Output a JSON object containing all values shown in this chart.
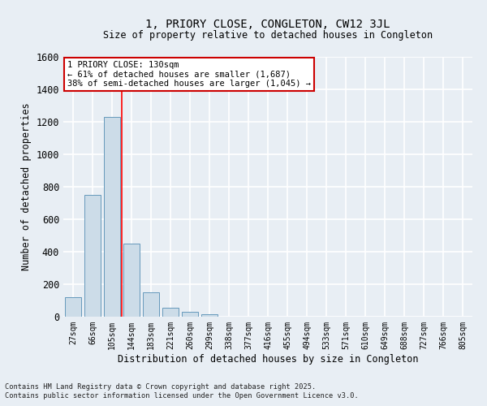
{
  "title1": "1, PRIORY CLOSE, CONGLETON, CW12 3JL",
  "title2": "Size of property relative to detached houses in Congleton",
  "xlabel": "Distribution of detached houses by size in Congleton",
  "ylabel": "Number of detached properties",
  "categories": [
    "27sqm",
    "66sqm",
    "105sqm",
    "144sqm",
    "183sqm",
    "221sqm",
    "260sqm",
    "299sqm",
    "338sqm",
    "377sqm",
    "416sqm",
    "455sqm",
    "494sqm",
    "533sqm",
    "571sqm",
    "610sqm",
    "649sqm",
    "688sqm",
    "727sqm",
    "766sqm",
    "805sqm"
  ],
  "values": [
    120,
    750,
    1230,
    450,
    150,
    55,
    30,
    15,
    0,
    0,
    0,
    0,
    0,
    0,
    0,
    0,
    0,
    0,
    0,
    0,
    0
  ],
  "bar_color": "#ccdce8",
  "bar_edge_color": "#6699bb",
  "background_color": "#e8eef4",
  "grid_color": "#ffffff",
  "ylim": [
    0,
    1600
  ],
  "yticks": [
    0,
    200,
    400,
    600,
    800,
    1000,
    1200,
    1400,
    1600
  ],
  "red_line_x": 2.5,
  "annotation_title": "1 PRIORY CLOSE: 130sqm",
  "annotation_line1": "← 61% of detached houses are smaller (1,687)",
  "annotation_line2": "38% of semi-detached houses are larger (1,045) →",
  "annotation_box_color": "#ffffff",
  "annotation_box_edge": "#cc0000",
  "footer1": "Contains HM Land Registry data © Crown copyright and database right 2025.",
  "footer2": "Contains public sector information licensed under the Open Government Licence v3.0."
}
